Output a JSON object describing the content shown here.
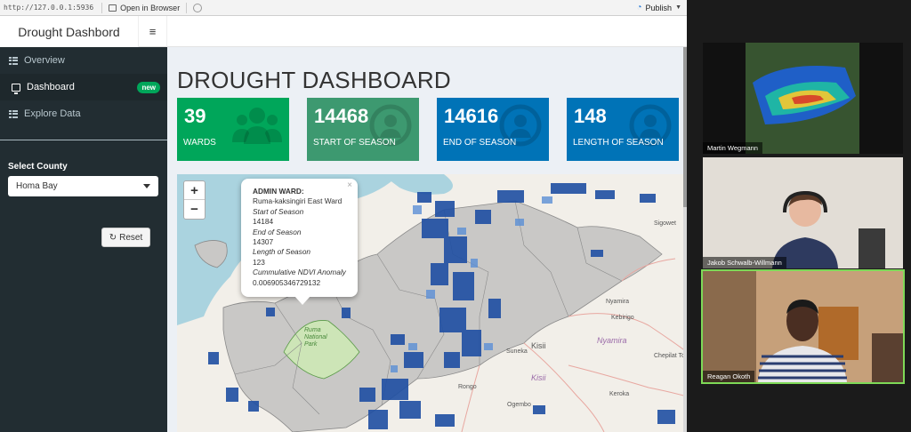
{
  "browser": {
    "url": "http://127.0.0.1:5936",
    "open_label": "Open in Browser",
    "publish_label": "Publish"
  },
  "header": {
    "title": "Drought Dashbord",
    "toggle_icon": "hamburger-icon"
  },
  "sidebar": {
    "items": [
      {
        "label": "Overview",
        "icon": "grid-icon",
        "active": false
      },
      {
        "label": "Dashboard",
        "icon": "monitor-icon",
        "active": true,
        "badge": "new"
      },
      {
        "label": "Explore Data",
        "icon": "grid-icon",
        "active": false
      }
    ],
    "county_label": "Select County",
    "county_value": "Homa Bay",
    "reset_label": "Reset"
  },
  "main": {
    "title": "DROUGHT DASHBOARD",
    "value_boxes": [
      {
        "value": "39",
        "label": "WARDS",
        "color": "#00a65a",
        "icon": "users-icon"
      },
      {
        "value": "14468",
        "label": "START OF SEASON",
        "color": "#3d9970",
        "icon": "user-circle-icon"
      },
      {
        "value": "14616",
        "label": "END OF SEASON",
        "color": "#0073b7",
        "icon": "user-circle-icon"
      },
      {
        "value": "148",
        "label": "LENGTH OF SEASON",
        "color": "#0073b7",
        "icon": "user-circle-icon"
      }
    ]
  },
  "map": {
    "zoom_in": "+",
    "zoom_out": "−",
    "popup": {
      "close": "×",
      "heading": "ADMIN WARD:",
      "ward": "Ruma-kaksingiri East Ward",
      "sos_label": "Start of Season",
      "sos_value": "14184",
      "eos_label": "End of Season",
      "eos_value": "14307",
      "los_label": "Length of Season",
      "los_value": "123",
      "ndvi_label": "Cummulative NDVI Anomaly",
      "ndvi_value": "0.006905346729132"
    },
    "places": {
      "sigowet": "Sigowet",
      "nyamira1": "Nyamira",
      "kebirigo": "Kebirigo",
      "kisii1": "Kisii",
      "suneka": "Suneka",
      "nyamira_big": "Nyamira",
      "kisii_big": "Kisii",
      "chepilat": "Chepilat Tc",
      "rongo": "Rongo",
      "keroka": "Keroka",
      "ogembo": "Ogembo",
      "park": "Ruma National Park"
    }
  },
  "video": {
    "participants": [
      "Martin Wegmann",
      "Jakob Schwalb-Willmann",
      "Reagan Okoth"
    ]
  }
}
